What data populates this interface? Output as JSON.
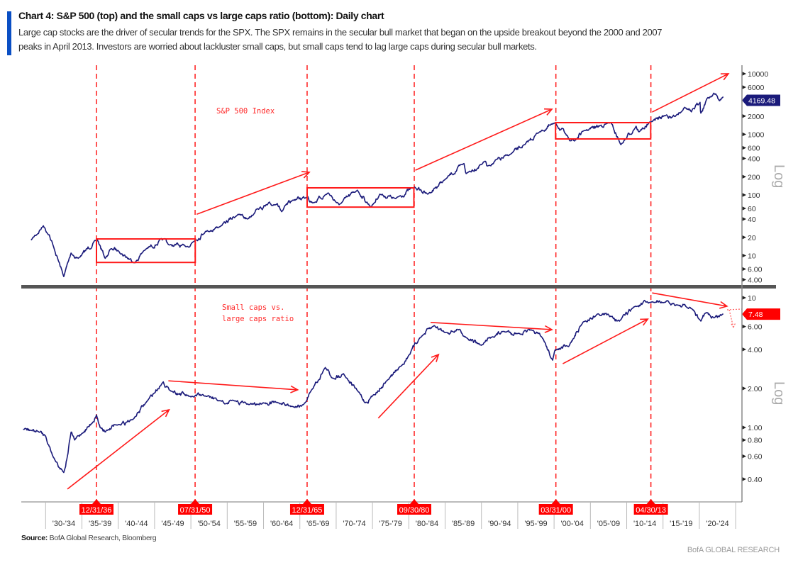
{
  "header": {
    "title": "Chart 4: S&P 500 (top) and the small caps vs large caps ratio (bottom): Daily chart",
    "subtitle_line1": "Large cap stocks are the driver of secular trends for the SPX. The SPX remains in the secular bull market that began on the upside breakout beyond the 2000 and 2007",
    "subtitle_line2": "peaks in April 2013. Investors are worried about lackluster small caps, but small caps tend to lag large caps during secular bull markets.",
    "accent_color": "#0a4fc4"
  },
  "footer": {
    "source_label": "Source:",
    "source_text": "BofA Global Research, Bloomberg",
    "brand": "BofA GLOBAL RESEARCH"
  },
  "chart_data": [
    {
      "type": "line",
      "panel": "top",
      "title": "S&P 500 Index",
      "scale": "log",
      "axis_label": "Log",
      "ylim": [
        3.5,
        12000
      ],
      "yticks": [
        "10000",
        "6000",
        "2000",
        "1000",
        "600",
        "400",
        "200",
        "100",
        "60",
        "40",
        "20",
        "10",
        "6.00",
        "4.00"
      ],
      "last_value_label": "4169.48",
      "line_color": "#1a1a7a",
      "series": [
        {
          "name": "S&P 500",
          "points": [
            [
              1928,
              18
            ],
            [
              1929.7,
              31
            ],
            [
              1930.5,
              22
            ],
            [
              1931,
              15
            ],
            [
              1932.5,
              4.5
            ],
            [
              1933.5,
              11
            ],
            [
              1934.5,
              9
            ],
            [
              1937.1,
              18.5
            ],
            [
              1938.2,
              9
            ],
            [
              1939,
              13
            ],
            [
              1940,
              12
            ],
            [
              1942.3,
              7.6
            ],
            [
              1943.5,
              12
            ],
            [
              1946.4,
              19
            ],
            [
              1947,
              15
            ],
            [
              1949.4,
              14
            ],
            [
              1950.6,
              18
            ],
            [
              1952,
              25
            ],
            [
              1954,
              30
            ],
            [
              1956.5,
              48
            ],
            [
              1957.8,
              40
            ],
            [
              1959,
              58
            ],
            [
              1961.9,
              72
            ],
            [
              1962.5,
              53
            ],
            [
              1964,
              82
            ],
            [
              1966.1,
              94
            ],
            [
              1966.8,
              74
            ],
            [
              1968.9,
              108
            ],
            [
              1970.4,
              69
            ],
            [
              1972.9,
              120
            ],
            [
              1974.8,
              63
            ],
            [
              1976,
              103
            ],
            [
              1978.2,
              87
            ],
            [
              1980.8,
              135
            ],
            [
              1982.6,
              103
            ],
            [
              1985,
              180
            ],
            [
              1987.6,
              330
            ],
            [
              1987.9,
              225
            ],
            [
              1990.5,
              360
            ],
            [
              1990.8,
              300
            ],
            [
              1994,
              470
            ],
            [
              1996,
              680
            ],
            [
              1998,
              1100
            ],
            [
              2000.2,
              1527
            ],
            [
              2001.7,
              965
            ],
            [
              2002.8,
              776
            ],
            [
              2004,
              1130
            ],
            [
              2007.8,
              1565
            ],
            [
              2009.2,
              676
            ],
            [
              2011.3,
              1360
            ],
            [
              2011.7,
              1100
            ],
            [
              2013.3,
              1600
            ],
            [
              2015.5,
              2100
            ],
            [
              2016.1,
              1860
            ],
            [
              2018,
              2800
            ],
            [
              2018.9,
              2350
            ],
            [
              2020.1,
              3380
            ],
            [
              2020.2,
              2237
            ],
            [
              2021,
              3800
            ],
            [
              2022,
              4780
            ],
            [
              2022.8,
              3580
            ],
            [
              2023.3,
              4169.48
            ]
          ]
        }
      ],
      "boxes": [
        [
          1937,
          1950.6,
          7.7,
          18.8
        ],
        [
          1966,
          1980.7,
          63,
          131
        ],
        [
          2000.2,
          2013.3,
          840,
          1560
        ]
      ],
      "arrows": [
        [
          1950.8,
          48,
          1966.3,
          237
        ],
        [
          1980.9,
          256,
          1999.7,
          2600
        ],
        [
          2013.5,
          2330,
          2024.0,
          10000
        ]
      ]
    },
    {
      "type": "line",
      "panel": "bottom",
      "title": "Small caps vs. large caps ratio",
      "title_line1": "Small caps vs.",
      "title_line2": "large caps ratio",
      "scale": "log",
      "axis_label": "Log",
      "ylim": [
        0.33,
        11.5
      ],
      "yticks": [
        "10",
        "6.00",
        "4.00",
        "2.00",
        "1.00",
        "0.80",
        "0.60",
        "0.40"
      ],
      "last_value_label": "7.48",
      "line_color": "#1a1a7a",
      "series": [
        {
          "name": "Small/Large ratio",
          "points": [
            [
              1926.9,
              0.97
            ],
            [
              1928,
              0.95
            ],
            [
              1929,
              0.93
            ],
            [
              1930,
              0.86
            ],
            [
              1931,
              0.6
            ],
            [
              1932.5,
              0.45
            ],
            [
              1933,
              0.6
            ],
            [
              1933.5,
              0.92
            ],
            [
              1934,
              0.8
            ],
            [
              1935,
              0.9
            ],
            [
              1936.5,
              1.1
            ],
            [
              1937,
              1.25
            ],
            [
              1937.5,
              1.0
            ],
            [
              1938.5,
              0.95
            ],
            [
              1940,
              1.05
            ],
            [
              1942,
              1.15
            ],
            [
              1944,
              1.6
            ],
            [
              1946.2,
              2.25
            ],
            [
              1947,
              1.95
            ],
            [
              1950,
              1.72
            ],
            [
              1952,
              1.75
            ],
            [
              1954,
              1.6
            ],
            [
              1956,
              1.6
            ],
            [
              1958,
              1.5
            ],
            [
              1960,
              1.55
            ],
            [
              1962,
              1.55
            ],
            [
              1964,
              1.45
            ],
            [
              1965.5,
              1.5
            ],
            [
              1966.5,
              1.9
            ],
            [
              1968.5,
              2.9
            ],
            [
              1969.5,
              2.4
            ],
            [
              1971,
              2.6
            ],
            [
              1973,
              1.9
            ],
            [
              1974,
              1.55
            ],
            [
              1975,
              1.75
            ],
            [
              1977,
              2.3
            ],
            [
              1979,
              3.0
            ],
            [
              1980,
              3.6
            ],
            [
              1981.5,
              4.9
            ],
            [
              1983.5,
              6.1
            ],
            [
              1985,
              5.4
            ],
            [
              1987,
              5.7
            ],
            [
              1988,
              4.9
            ],
            [
              1990,
              4.3
            ],
            [
              1991.5,
              5.0
            ],
            [
              1993,
              5.5
            ],
            [
              1995,
              5.3
            ],
            [
              1997,
              5.6
            ],
            [
              1998.5,
              4.8
            ],
            [
              1999.8,
              3.3
            ],
            [
              2000.3,
              4.0
            ],
            [
              2002,
              4.2
            ],
            [
              2004,
              6.5
            ],
            [
              2006,
              7.5
            ],
            [
              2008,
              7.2
            ],
            [
              2009,
              6.6
            ],
            [
              2011,
              8.5
            ],
            [
              2013.5,
              9.3
            ],
            [
              2015,
              9.2
            ],
            [
              2017,
              8.8
            ],
            [
              2019,
              8.2
            ],
            [
              2020.2,
              6.6
            ],
            [
              2021,
              7.7
            ],
            [
              2022,
              7.0
            ],
            [
              2023.3,
              7.48
            ]
          ]
        }
      ],
      "arrows": [
        [
          1933,
          0.335,
          1947,
          1.37
        ],
        [
          1946.9,
          2.29,
          1964.7,
          1.95
        ],
        [
          1975.8,
          1.18,
          1984.1,
          3.65
        ],
        [
          1983,
          6.45,
          1999.7,
          5.68
        ],
        [
          2001.2,
          3.1,
          2012.9,
          6.85
        ],
        [
          2013.5,
          10.9,
          2023.8,
          8.6
        ]
      ]
    }
  ],
  "x_axis": {
    "bins": [
      "'30-'34",
      "'35-'39",
      "'40-'44",
      "'45-'49",
      "'50-'54",
      "'55-'59",
      "'60-'64",
      "'65-'69",
      "'70-'74",
      "'75-'79",
      "'80-'84",
      "'85-'89",
      "'90-'94",
      "'95-'99",
      "'00-'04",
      "'05-'09",
      "'10-'14",
      "'15-'19",
      "'20-'24"
    ],
    "bin_start_year": 1930,
    "bin_years": 5,
    "markers": [
      {
        "label": "12/31/36",
        "year": 1937.0
      },
      {
        "label": "07/31/50",
        "year": 1950.58
      },
      {
        "label": "12/31/65",
        "year": 1966.0
      },
      {
        "label": "09/30/80",
        "year": 1980.75
      },
      {
        "label": "03/31/00",
        "year": 2000.25
      },
      {
        "label": "04/30/13",
        "year": 2013.33
      }
    ],
    "marker_color": "#ff0000"
  }
}
